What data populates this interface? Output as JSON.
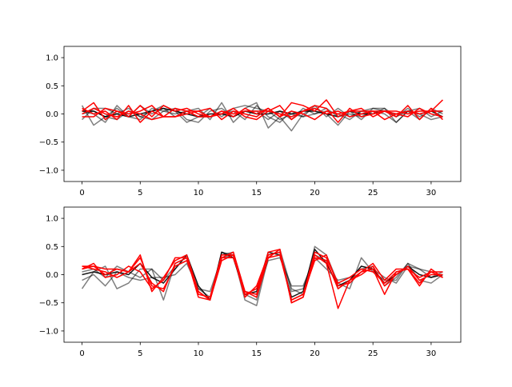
{
  "chart_data": [
    {
      "type": "line",
      "xlim": [
        -1.55,
        32.55
      ],
      "ylim": [
        -1.2,
        1.2
      ],
      "xticks": [
        0,
        5,
        10,
        15,
        20,
        25,
        30
      ],
      "xtick_labels": [
        "0",
        "5",
        "10",
        "15",
        "20",
        "25",
        "30"
      ],
      "yticks": [
        -1.0,
        -0.5,
        0.0,
        0.5,
        1.0
      ],
      "ytick_labels": [
        "−1.0",
        "−0.5",
        "0.0",
        "0.5",
        "1.0"
      ],
      "grid": false,
      "x": [
        0,
        1,
        2,
        3,
        4,
        5,
        6,
        7,
        8,
        9,
        10,
        11,
        12,
        13,
        14,
        15,
        16,
        17,
        18,
        19,
        20,
        21,
        22,
        23,
        24,
        25,
        26,
        27,
        28,
        29,
        30,
        31
      ],
      "series": [
        {
          "color": "#000000",
          "alpha": 0.5,
          "values": [
            0.15,
            -0.2,
            -0.05,
            0.1,
            -0.05,
            -0.1,
            0.1,
            0.05,
            0.1,
            -0.1,
            -0.15,
            0.05,
            0.1,
            -0.05,
            0.1,
            0.2,
            -0.25,
            -0.05,
            -0.3,
            0.0,
            0.1,
            0.0,
            -0.2,
            0.05,
            -0.1,
            0.1,
            0.1,
            -0.05,
            0.05,
            -0.1,
            0.1,
            0.0
          ]
        },
        {
          "color": "#000000",
          "alpha": 0.5,
          "values": [
            -0.1,
            0.1,
            0.1,
            0.0,
            0.1,
            -0.05,
            0.05,
            0.15,
            0.05,
            -0.15,
            -0.05,
            0.1,
            -0.05,
            0.1,
            0.15,
            0.1,
            0.05,
            -0.1,
            0.0,
            -0.05,
            0.15,
            -0.05,
            0.1,
            -0.05,
            0.05,
            0.0,
            0.1,
            -0.15,
            0.05,
            0.1,
            -0.05,
            0.05
          ]
        },
        {
          "color": "#000000",
          "alpha": 0.5,
          "values": [
            0.05,
            0.0,
            -0.15,
            0.15,
            -0.05,
            0.15,
            0.0,
            0.1,
            -0.05,
            0.05,
            0.1,
            -0.1,
            0.2,
            -0.15,
            0.05,
            0.05,
            -0.1,
            0.05,
            -0.1,
            0.1,
            0.0,
            0.05,
            0.0,
            -0.1,
            0.05,
            0.1,
            0.05,
            -0.05,
            0.1,
            -0.05,
            0.05,
            0.05
          ]
        },
        {
          "color": "#000000",
          "alpha": 0.5,
          "values": [
            0.0,
            0.05,
            -0.05,
            -0.1,
            0.05,
            -0.05,
            -0.1,
            0.05,
            0.0,
            0.05,
            -0.05,
            -0.05,
            0.0,
            0.05,
            -0.1,
            0.15,
            -0.05,
            -0.15,
            0.05,
            -0.05,
            0.0,
            0.1,
            -0.05,
            0.0,
            -0.05,
            0.05,
            0.0,
            -0.15,
            0.05,
            0.0,
            -0.1,
            -0.05
          ]
        },
        {
          "color": "#000000",
          "alpha": 0.9,
          "values": [
            0.05,
            0.05,
            -0.05,
            0.0,
            -0.05,
            0.0,
            0.05,
            0.1,
            0.05,
            0.0,
            -0.05,
            0.0,
            0.0,
            -0.05,
            0.05,
            0.0,
            0.0,
            0.05,
            0.0,
            0.05,
            0.05,
            0.0,
            -0.05,
            0.05,
            0.0,
            0.0,
            0.05,
            0.0,
            0.05,
            0.0,
            0.05,
            -0.05
          ]
        },
        {
          "color": "#ff0000",
          "alpha": 1.0,
          "values": [
            0.05,
            0.2,
            -0.1,
            0.05,
            -0.05,
            0.15,
            -0.05,
            0.15,
            0.05,
            0.1,
            0.0,
            -0.05,
            0.0,
            0.1,
            -0.05,
            -0.1,
            0.05,
            0.15,
            -0.1,
            0.05,
            0.15,
            0.1,
            -0.15,
            0.1,
            -0.05,
            0.0,
            0.05,
            -0.05,
            0.15,
            -0.1,
            0.1,
            -0.1
          ]
        },
        {
          "color": "#ff0000",
          "alpha": 1.0,
          "values": [
            0.1,
            0.0,
            0.05,
            -0.1,
            0.15,
            -0.15,
            0.05,
            -0.05,
            0.1,
            0.05,
            -0.05,
            -0.05,
            0.05,
            -0.05,
            0.1,
            0.0,
            0.1,
            -0.05,
            0.2,
            0.15,
            0.05,
            0.25,
            -0.05,
            0.05,
            0.05,
            0.05,
            -0.1,
            0.0,
            0.05,
            0.0,
            0.05,
            0.25
          ]
        },
        {
          "color": "#ff0000",
          "alpha": 1.0,
          "values": [
            -0.05,
            -0.05,
            0.1,
            0.05,
            0.0,
            0.05,
            0.15,
            -0.05,
            -0.05,
            0.0,
            0.05,
            0.1,
            -0.1,
            0.05,
            0.0,
            -0.05,
            0.1,
            -0.05,
            0.05,
            0.0,
            -0.1,
            0.05,
            0.0,
            0.05,
            0.1,
            -0.05,
            0.05,
            0.0,
            -0.05,
            0.1,
            0.0,
            -0.05
          ]
        },
        {
          "color": "#ff0000",
          "alpha": 1.0,
          "values": [
            0.0,
            0.1,
            0.0,
            -0.05,
            0.05,
            0.0,
            -0.1,
            -0.05,
            -0.05,
            0.05,
            0.05,
            -0.05,
            0.05,
            0.0,
            0.05,
            0.05,
            0.05,
            0.0,
            -0.05,
            0.05,
            0.1,
            0.0,
            0.05,
            -0.05,
            0.0,
            0.05,
            0.05,
            0.05,
            0.0,
            0.05,
            0.05,
            0.05
          ]
        }
      ]
    },
    {
      "type": "line",
      "xlim": [
        -1.55,
        32.55
      ],
      "ylim": [
        -1.2,
        1.2
      ],
      "xticks": [
        0,
        5,
        10,
        15,
        20,
        25,
        30
      ],
      "xtick_labels": [
        "0",
        "5",
        "10",
        "15",
        "20",
        "25",
        "30"
      ],
      "yticks": [
        -1.0,
        -0.5,
        0.0,
        0.5,
        1.0
      ],
      "ytick_labels": [
        "−1.0",
        "−0.5",
        "0.0",
        "0.5",
        "1.0"
      ],
      "grid": false,
      "x": [
        0,
        1,
        2,
        3,
        4,
        5,
        6,
        7,
        8,
        9,
        10,
        11,
        12,
        13,
        14,
        15,
        16,
        17,
        18,
        19,
        20,
        21,
        22,
        23,
        24,
        25,
        26,
        27,
        28,
        29,
        30,
        31
      ],
      "series": [
        {
          "color": "#000000",
          "alpha": 0.5,
          "values": [
            -0.25,
            0.05,
            0.15,
            -0.25,
            -0.15,
            0.1,
            0.1,
            -0.45,
            0.2,
            0.3,
            -0.3,
            -0.45,
            0.4,
            0.35,
            -0.45,
            -0.55,
            0.3,
            0.45,
            -0.25,
            -0.35,
            0.5,
            0.35,
            -0.15,
            -0.25,
            0.3,
            0.05,
            -0.1,
            -0.1,
            0.2,
            -0.1,
            -0.15,
            0.0
          ]
        },
        {
          "color": "#000000",
          "alpha": 0.5,
          "values": [
            -0.1,
            0.0,
            -0.2,
            0.05,
            -0.05,
            -0.1,
            -0.05,
            -0.05,
            0.0,
            0.2,
            -0.25,
            -0.3,
            0.3,
            0.35,
            -0.35,
            -0.45,
            0.35,
            0.4,
            -0.3,
            -0.25,
            0.35,
            0.25,
            -0.25,
            -0.1,
            0.15,
            0.1,
            -0.05,
            -0.15,
            0.15,
            0.1,
            -0.05,
            0.05
          ]
        },
        {
          "color": "#000000",
          "alpha": 0.5,
          "values": [
            0.05,
            0.1,
            -0.05,
            0.15,
            0.05,
            -0.05,
            0.1,
            -0.1,
            0.15,
            0.25,
            -0.25,
            -0.4,
            0.35,
            0.4,
            -0.3,
            -0.35,
            0.25,
            0.3,
            -0.2,
            -0.2,
            0.3,
            0.1,
            -0.1,
            -0.05,
            0.1,
            0.15,
            -0.2,
            -0.05,
            0.2,
            0.1,
            0.05,
            -0.05
          ]
        },
        {
          "color": "#000000",
          "alpha": 0.9,
          "values": [
            0.0,
            0.05,
            0.0,
            0.05,
            0.0,
            0.2,
            -0.05,
            -0.15,
            0.1,
            0.35,
            -0.2,
            -0.45,
            0.4,
            0.3,
            -0.35,
            -0.3,
            0.4,
            0.35,
            -0.4,
            -0.3,
            0.45,
            0.2,
            -0.2,
            -0.1,
            0.15,
            0.1,
            -0.15,
            0.0,
            0.15,
            0.0,
            -0.05,
            0.0
          ]
        },
        {
          "color": "#ff0000",
          "alpha": 1.0,
          "values": [
            0.15,
            0.15,
            0.1,
            0.1,
            0.05,
            0.35,
            -0.3,
            -0.05,
            0.25,
            0.35,
            -0.3,
            -0.45,
            0.3,
            0.4,
            -0.3,
            -0.35,
            0.4,
            0.45,
            -0.5,
            -0.4,
            0.35,
            0.2,
            -0.6,
            -0.1,
            0.05,
            0.1,
            -0.35,
            0.05,
            0.1,
            -0.2,
            0.1,
            -0.05
          ]
        },
        {
          "color": "#ff0000",
          "alpha": 1.0,
          "values": [
            0.1,
            0.2,
            -0.05,
            0.0,
            0.15,
            0.05,
            -0.25,
            -0.1,
            0.3,
            0.3,
            -0.35,
            -0.4,
            0.35,
            0.35,
            -0.4,
            -0.2,
            0.35,
            0.4,
            -0.45,
            -0.35,
            0.25,
            0.35,
            -0.2,
            -0.15,
            0.05,
            0.2,
            -0.1,
            0.1,
            0.1,
            -0.15,
            0.05,
            0.05
          ]
        },
        {
          "color": "#ff0000",
          "alpha": 1.0,
          "values": [
            0.15,
            0.1,
            0.05,
            -0.05,
            0.05,
            0.3,
            -0.2,
            -0.25,
            0.15,
            0.25,
            -0.3,
            -0.45,
            0.25,
            0.35,
            -0.35,
            -0.25,
            0.3,
            0.45,
            -0.5,
            -0.4,
            0.3,
            0.25,
            -0.25,
            -0.1,
            0.0,
            0.15,
            -0.2,
            0.0,
            0.15,
            -0.1,
            0.0,
            0.0
          ]
        },
        {
          "color": "#ff0000",
          "alpha": 1.0,
          "values": [
            0.1,
            0.15,
            0.0,
            0.1,
            0.05,
            0.2,
            -0.15,
            -0.3,
            0.2,
            0.3,
            -0.4,
            -0.45,
            0.3,
            0.3,
            -0.3,
            -0.4,
            0.3,
            0.35,
            -0.45,
            -0.35,
            0.4,
            0.3,
            -0.15,
            -0.05,
            0.1,
            0.05,
            -0.15,
            0.05,
            0.1,
            -0.05,
            0.05,
            -0.05
          ]
        }
      ]
    }
  ]
}
